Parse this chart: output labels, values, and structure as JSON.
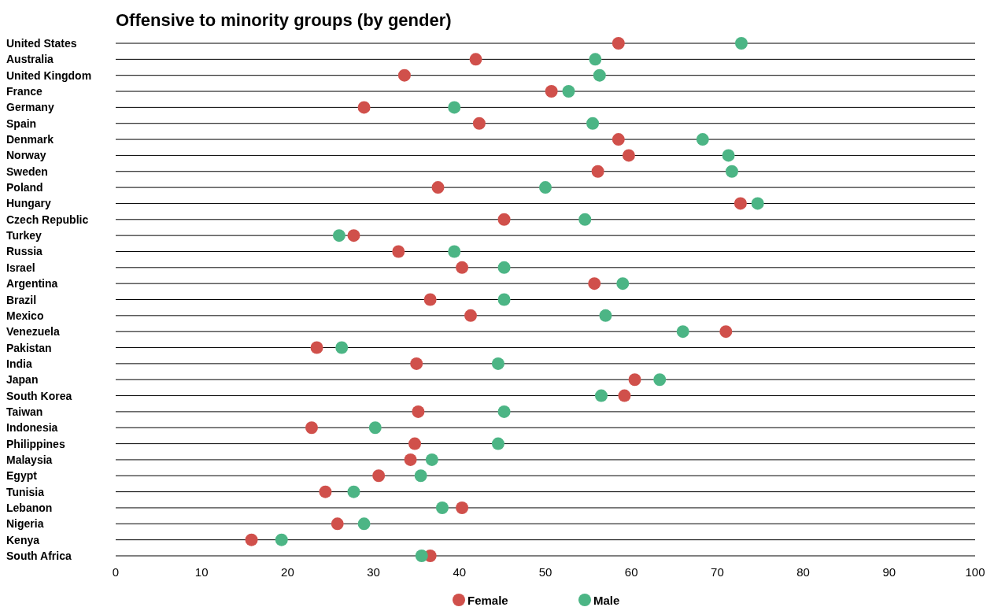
{
  "chart_data": {
    "type": "scatter",
    "orientation": "horizontal",
    "title": "Offensive to minority groups (by gender)",
    "categories": [
      "United States",
      "Australia",
      "United Kingdom",
      "France",
      "Germany",
      "Spain",
      "Denmark",
      "Norway",
      "Sweden",
      "Poland",
      "Hungary",
      "Czech Republic",
      "Turkey",
      "Russia",
      "Israel",
      "Argentina",
      "Brazil",
      "Mexico",
      "Venezuela",
      "Pakistan",
      "India",
      "Japan",
      "South Korea",
      "Taiwan",
      "Indonesia",
      "Philippines",
      "Malaysia",
      "Egypt",
      "Tunisia",
      "Lebanon",
      "Nigeria",
      "Kenya",
      "South Africa"
    ],
    "series": [
      {
        "name": "Female",
        "color": "#d0504b",
        "values": [
          58.5,
          41.9,
          33.6,
          50.7,
          28.9,
          42.3,
          58.5,
          59.7,
          56.1,
          37.5,
          72.7,
          45.2,
          27.7,
          32.9,
          40.3,
          55.7,
          36.6,
          41.3,
          71.0,
          23.4,
          35.0,
          60.4,
          59.2,
          35.2,
          22.8,
          34.8,
          34.3,
          30.6,
          24.4,
          40.3,
          25.8,
          15.8,
          36.6
        ]
      },
      {
        "name": "Male",
        "color": "#4cb585",
        "values": [
          72.8,
          55.8,
          56.3,
          52.7,
          39.4,
          55.5,
          68.3,
          71.3,
          71.7,
          50.0,
          74.7,
          54.6,
          26.0,
          39.4,
          45.2,
          59.0,
          45.2,
          57.0,
          66.0,
          26.3,
          44.5,
          63.3,
          56.5,
          45.2,
          30.2,
          44.5,
          36.8,
          35.5,
          27.7,
          38.0,
          28.9,
          19.3,
          35.6
        ]
      }
    ],
    "xlim": [
      0,
      100
    ],
    "xticks": [
      0,
      10,
      20,
      30,
      40,
      50,
      60,
      70,
      80,
      90,
      100
    ],
    "grid": "y",
    "legend": "bottom",
    "marker": "circle"
  }
}
